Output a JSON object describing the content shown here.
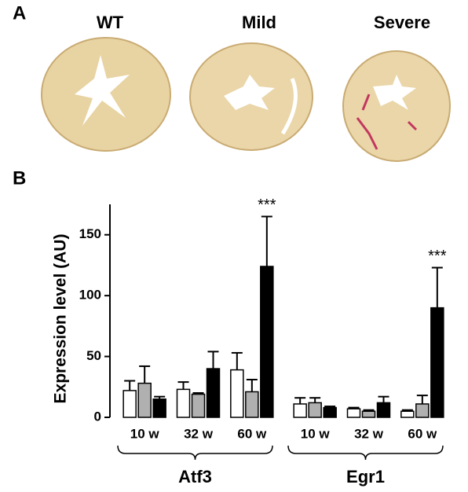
{
  "panel_a": {
    "label": "A",
    "images": [
      "WT",
      "Mild",
      "Severe"
    ]
  },
  "chart_data": {
    "type": "bar",
    "panel_label": "B",
    "ylabel": "Expression level (AU)",
    "groups": [
      {
        "name": "Atf3",
        "categories": [
          "10 w",
          "32 w",
          "60 w"
        ]
      },
      {
        "name": "Egr1",
        "categories": [
          "10 w",
          "32 w",
          "60 w"
        ]
      }
    ],
    "series": [
      {
        "color": "#ffffff",
        "values": [
          22,
          23,
          39,
          11,
          7,
          5
        ],
        "errors": [
          8,
          6,
          14,
          5,
          1,
          1
        ],
        "significance": [
          null,
          null,
          null,
          null,
          null,
          null
        ]
      },
      {
        "color": "#b0b0b0",
        "values": [
          28,
          19,
          21,
          12,
          5,
          11
        ],
        "errors": [
          14,
          1,
          10,
          4,
          1,
          7
        ],
        "significance": [
          null,
          null,
          null,
          null,
          null,
          null
        ]
      },
      {
        "color": "#000000",
        "values": [
          15,
          40,
          124,
          8,
          12,
          90
        ],
        "errors": [
          2,
          14,
          41,
          1,
          5,
          33
        ],
        "significance": [
          null,
          null,
          "***",
          null,
          null,
          "***"
        ]
      }
    ],
    "ylim": [
      0,
      175
    ],
    "yticks": [
      0,
      50,
      100,
      150
    ]
  }
}
